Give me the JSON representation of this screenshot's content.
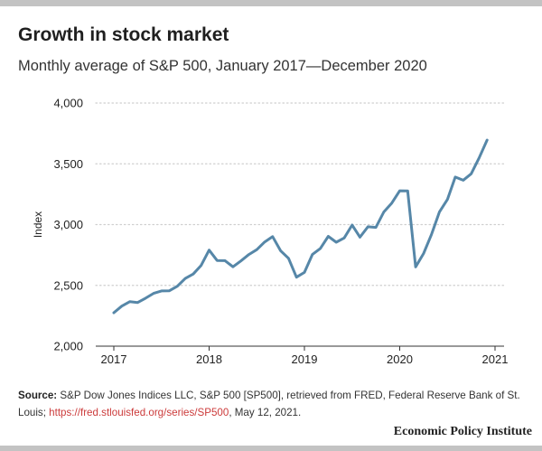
{
  "title": "Growth in stock market",
  "subtitle": "Monthly average of S&P 500, January 2017—December 2020",
  "source": {
    "label": "Source:",
    "text": " S&P Dow Jones Indices LLC, S&P 500 [SP500], retrieved from FRED, Federal Reserve Bank of St. Louis; ",
    "link": "https://fred.stlouisfed.org/series/SP500",
    "suffix": ", May 12, 2021."
  },
  "brand": "Economic Policy Institute",
  "colors": {
    "line": "#5687a8",
    "grid": "#cfcfcf",
    "axis": "#333333"
  },
  "chart_data": {
    "type": "line",
    "title": "Growth in stock market",
    "subtitle": "Monthly average of S&P 500, January 2017—December 2020",
    "ylabel": "Index",
    "xlabel": "",
    "ylim": [
      2000,
      4000
    ],
    "xlim": [
      2017,
      2021
    ],
    "yticks": [
      2000,
      2500,
      3000,
      3500,
      4000
    ],
    "ytick_labels": [
      "2,000",
      "2,500",
      "3,000",
      "3,500",
      "4,000"
    ],
    "xticks": [
      2017,
      2018,
      2019,
      2020,
      2021
    ],
    "xtick_labels": [
      "2017",
      "2018",
      "2019",
      "2020",
      "2021"
    ],
    "grid": true,
    "series": [
      {
        "x": [
          "2017-01",
          "2017-02",
          "2017-03",
          "2017-04",
          "2017-05",
          "2017-06",
          "2017-07",
          "2017-08",
          "2017-09",
          "2017-10",
          "2017-11",
          "2017-12",
          "2018-01",
          "2018-02",
          "2018-03",
          "2018-04",
          "2018-05",
          "2018-06",
          "2018-07",
          "2018-08",
          "2018-09",
          "2018-10",
          "2018-11",
          "2018-12",
          "2019-01",
          "2019-02",
          "2019-03",
          "2019-04",
          "2019-05",
          "2019-06",
          "2019-07",
          "2019-08",
          "2019-09",
          "2019-10",
          "2019-11",
          "2019-12",
          "2020-01",
          "2020-02",
          "2020-03",
          "2020-04",
          "2020-05",
          "2020-06",
          "2020-07",
          "2020-08",
          "2020-09",
          "2020-10",
          "2020-11",
          "2020-12"
        ],
        "values": [
          2275,
          2329,
          2366,
          2359,
          2395,
          2434,
          2454,
          2456,
          2493,
          2557,
          2593,
          2665,
          2790,
          2705,
          2703,
          2653,
          2701,
          2754,
          2794,
          2857,
          2901,
          2785,
          2723,
          2567,
          2607,
          2754,
          2804,
          2903,
          2855,
          2890,
          2996,
          2897,
          2982,
          2977,
          3104,
          3177,
          3278,
          3277,
          2652,
          2762,
          2920,
          3105,
          3207,
          3391,
          3365,
          3418,
          3549,
          3695
        ]
      }
    ]
  }
}
